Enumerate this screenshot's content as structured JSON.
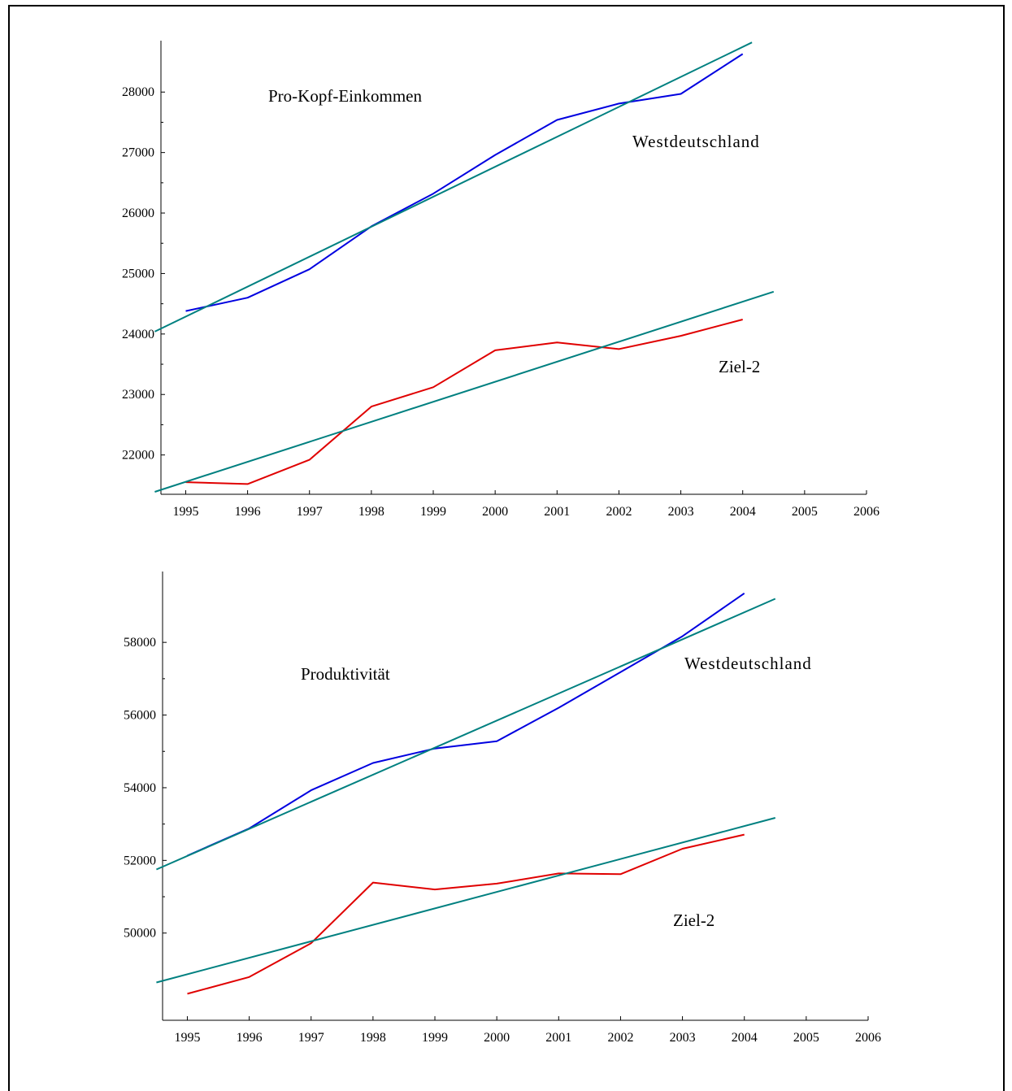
{
  "chart_data": [
    {
      "type": "line",
      "title": "",
      "xlabel": "",
      "ylabel": "",
      "xlim": [
        1994.6,
        2006
      ],
      "ylim": [
        21350,
        28850
      ],
      "x_ticks": [
        1995,
        1996,
        1997,
        1998,
        1999,
        2000,
        2001,
        2002,
        2003,
        2004,
        2005,
        2006
      ],
      "y_ticks": [
        22000,
        23000,
        24000,
        25000,
        26000,
        27000,
        28000
      ],
      "annotations": [
        {
          "text": "Pro-Kopf-Einkommen",
          "role": "title-annotation"
        },
        {
          "text": "Westdeutschland",
          "role": "series-label"
        },
        {
          "text": "Ziel-2",
          "role": "series-label"
        }
      ],
      "series": [
        {
          "color": "#0000e0",
          "x": [
            1995,
            1996,
            1997,
            1998,
            1999,
            2000,
            2001,
            2002,
            2003,
            2004
          ],
          "y": [
            24380,
            24600,
            25070,
            25780,
            26320,
            26960,
            27540,
            27810,
            27970,
            28630
          ]
        },
        {
          "color": "#e00000",
          "x": [
            1995,
            1996,
            1997,
            1998,
            1999,
            2000,
            2001,
            2002,
            2003,
            2004
          ],
          "y": [
            21550,
            21520,
            21920,
            22800,
            23120,
            23730,
            23860,
            23750,
            23970,
            24240
          ]
        },
        {
          "color": "#008080",
          "x": [
            1994.5,
            2004.15
          ],
          "y": [
            24040,
            28820
          ]
        },
        {
          "color": "#008080",
          "x": [
            1994.5,
            2004.5
          ],
          "y": [
            21390,
            24700
          ]
        }
      ]
    },
    {
      "type": "line",
      "title": "",
      "xlabel": "",
      "ylabel": "",
      "xlim": [
        1994.6,
        2006
      ],
      "ylim": [
        47600,
        59950
      ],
      "x_ticks": [
        1995,
        1996,
        1997,
        1998,
        1999,
        2000,
        2001,
        2002,
        2003,
        2004,
        2005,
        2006
      ],
      "y_ticks": [
        50000,
        52000,
        54000,
        56000,
        58000
      ],
      "annotations": [
        {
          "text": "Produktivität",
          "role": "title-annotation"
        },
        {
          "text": "Westdeutschland",
          "role": "series-label"
        },
        {
          "text": "Ziel-2",
          "role": "series-label"
        }
      ],
      "series": [
        {
          "color": "#0000e0",
          "x": [
            1995,
            1996,
            1997,
            1998,
            1999,
            2000,
            2001,
            2002,
            2003,
            2004
          ],
          "y": [
            52130,
            52880,
            53930,
            54680,
            55080,
            55280,
            56200,
            57180,
            58170,
            59350
          ]
        },
        {
          "color": "#e00000",
          "x": [
            1995,
            1996,
            1997,
            1998,
            1999,
            2000,
            2001,
            2002,
            2003,
            2004
          ],
          "y": [
            48330,
            48790,
            49720,
            51390,
            51200,
            51360,
            51640,
            51620,
            52320,
            52710
          ]
        },
        {
          "color": "#008080",
          "x": [
            1994.5,
            2004.5
          ],
          "y": [
            51750,
            59200
          ]
        },
        {
          "color": "#008080",
          "x": [
            1994.5,
            2004.5
          ],
          "y": [
            48640,
            53170
          ]
        }
      ]
    }
  ]
}
